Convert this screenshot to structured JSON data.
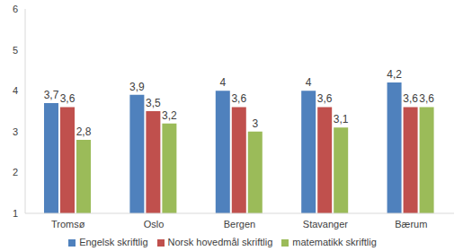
{
  "chart_data": {
    "type": "bar",
    "categories": [
      "Tromsø",
      "Oslo",
      "Bergen",
      "Stavanger",
      "Bærum"
    ],
    "series": [
      {
        "name": "Engelsk skriftlig",
        "color": "#4f81bd",
        "values": [
          3.7,
          3.9,
          4,
          4,
          4.2
        ],
        "value_labels": [
          "3,7",
          "3,9",
          "4",
          "4",
          "4,2"
        ]
      },
      {
        "name": "Norsk hovedmål skriftlig",
        "color": "#c0504d",
        "values": [
          3.6,
          3.5,
          3.6,
          3.6,
          3.6
        ],
        "value_labels": [
          "3,6",
          "3,5",
          "3,6",
          "3,6",
          "3,6"
        ]
      },
      {
        "name": "matematikk skriftlig",
        "color": "#9bbb59",
        "values": [
          2.8,
          3.2,
          3,
          3.1,
          3.6
        ],
        "value_labels": [
          "2,8",
          "3,2",
          "3",
          "3,1",
          "3,6"
        ]
      }
    ],
    "ylim": [
      1,
      6
    ],
    "yticks": [
      1,
      2,
      3,
      4,
      5,
      6
    ],
    "grid": false,
    "legend": "bottom",
    "data_labels": true
  }
}
